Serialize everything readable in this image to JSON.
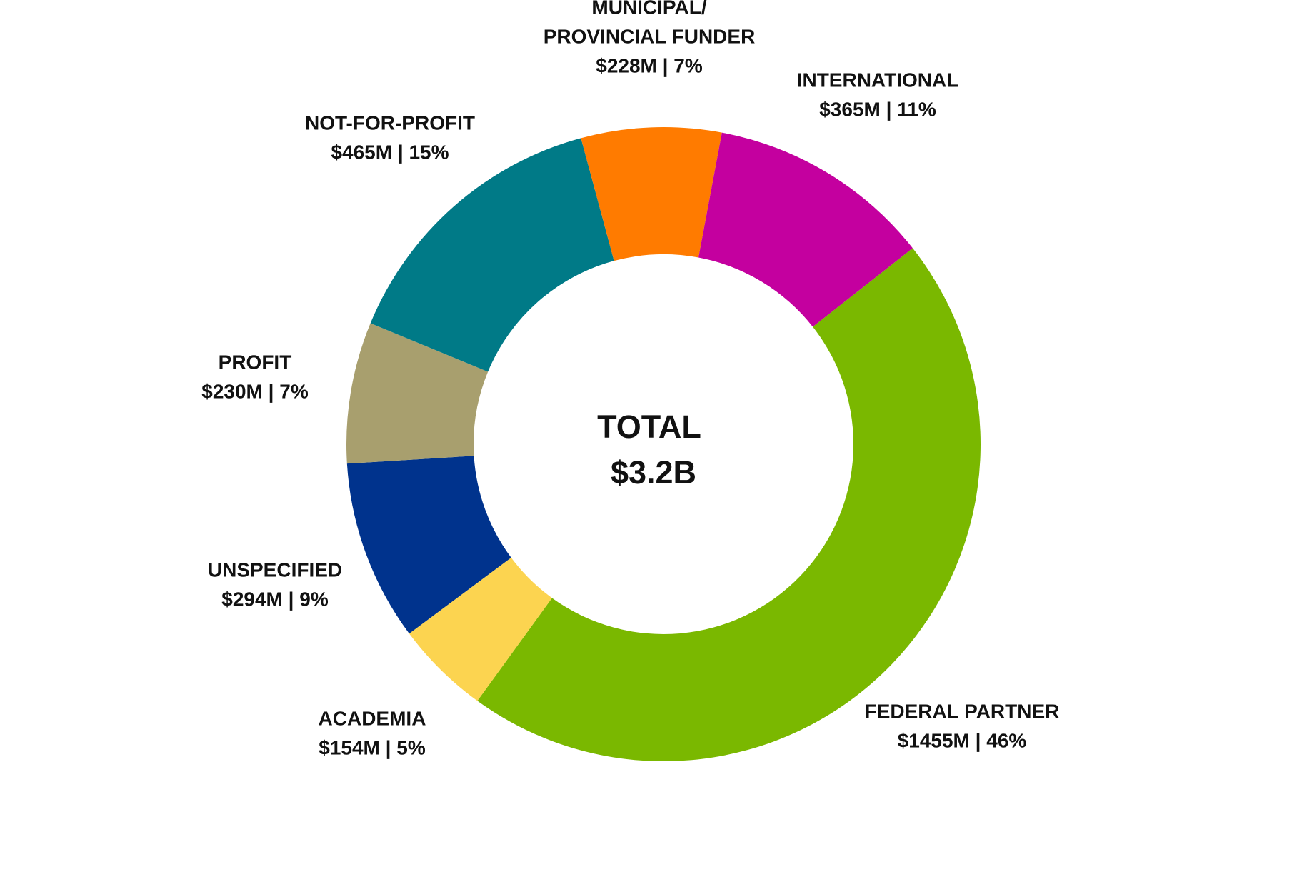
{
  "chart_data": {
    "type": "pie",
    "subtype": "donut",
    "center_label": {
      "line1": "TOTAL",
      "line2": "$3.2B"
    },
    "unit": "$M",
    "slices": [
      {
        "name": "FEDERAL PARTNER",
        "value": 1455,
        "percent": 46,
        "text": "$1455M | 46%",
        "color": "#7ab800"
      },
      {
        "name": "ACADEMIA",
        "value": 154,
        "percent": 5,
        "text": "$154M | 5%",
        "color": "#fcd450"
      },
      {
        "name": "UNSPECIFIED",
        "value": 294,
        "percent": 9,
        "text": "$294M | 9%",
        "color": "#00338d"
      },
      {
        "name": "PROFIT",
        "value": 230,
        "percent": 7,
        "text": "$230M | 7%",
        "color": "#a89f6e"
      },
      {
        "name": "NOT-FOR-PROFIT",
        "value": 465,
        "percent": 15,
        "text": "$465M | 15%",
        "color": "#007a87"
      },
      {
        "name_lines": [
          "MUNICIPAL/",
          "PROVINCIAL FUNDER"
        ],
        "name": "MUNICIPAL/ PROVINCIAL FUNDER",
        "value": 228,
        "percent": 7,
        "text": "$228M | 7%",
        "color": "#ff7b00"
      },
      {
        "name": "INTERNATIONAL",
        "value": 365,
        "percent": 11,
        "text": "$365M | 11%",
        "color": "#c4009f"
      }
    ],
    "direction": "clockwise",
    "legend": "none (labels placed beside slices)"
  }
}
